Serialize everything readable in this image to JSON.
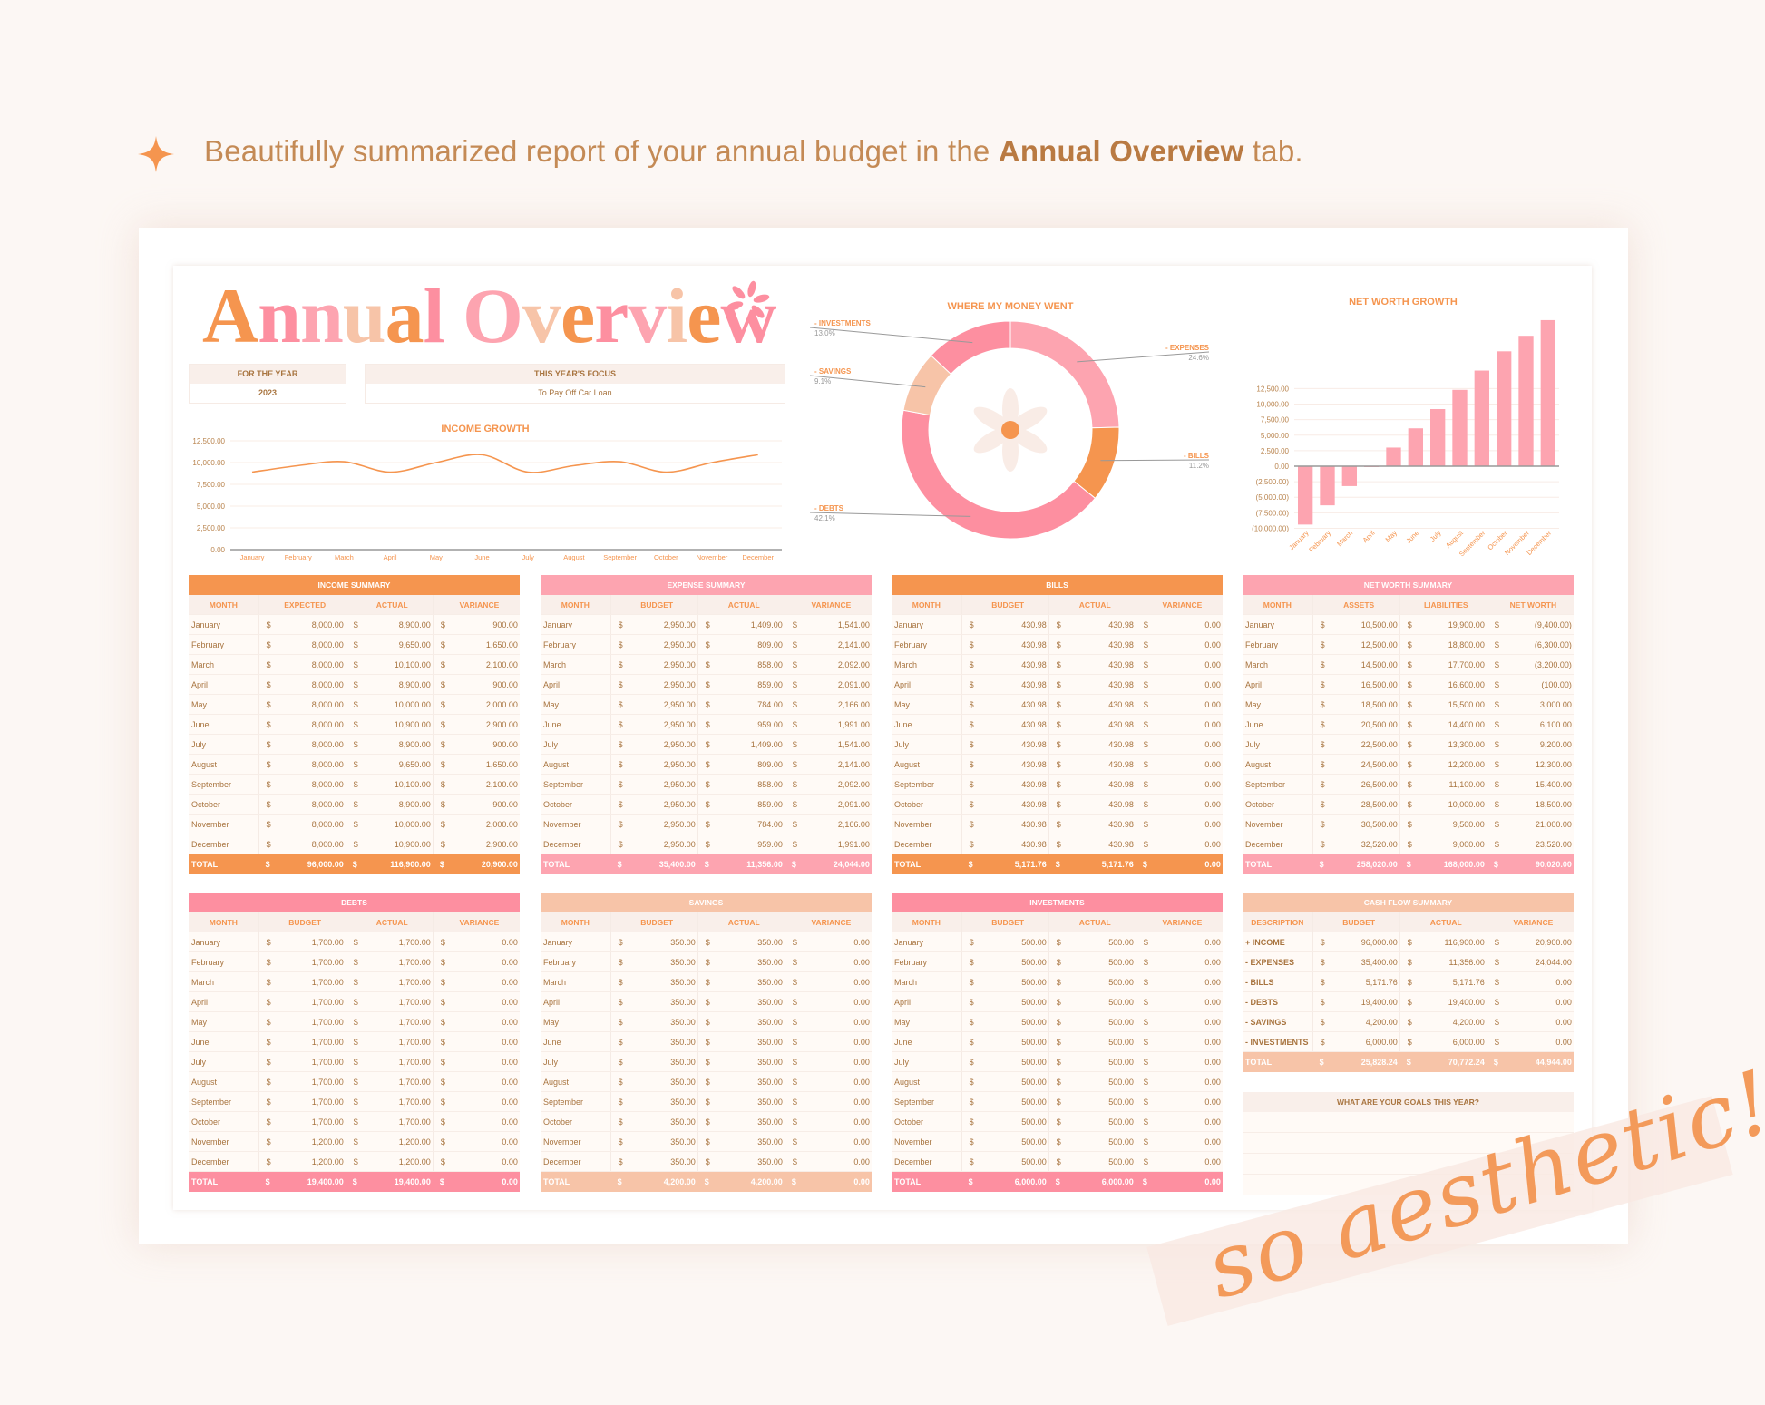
{
  "headline": {
    "prefix": "Beautifully summarized report of your annual budget in the ",
    "emphasis": "Annual Overview",
    "suffix": " tab."
  },
  "title": "Annual Overview",
  "title_palette": [
    "#f5954f",
    "#fd8fa0",
    "#fda4b0",
    "#f7c4a8"
  ],
  "for_the_year": {
    "label": "FOR THE YEAR",
    "value": "2023"
  },
  "focus": {
    "label": "THIS YEAR'S FOCUS",
    "value": "To Pay Off Car Loan"
  },
  "currency_symbol": "$",
  "colors": {
    "orange": "#f5954f",
    "pink": "#fd8fa0",
    "light_pink": "#fda4b0",
    "peach": "#f7c4a8",
    "text": "#a8743f"
  },
  "chart_data": [
    {
      "type": "line",
      "title": "INCOME GROWTH",
      "categories": [
        "January",
        "February",
        "March",
        "April",
        "May",
        "June",
        "July",
        "August",
        "September",
        "October",
        "November",
        "December"
      ],
      "values": [
        8900,
        9650,
        10100,
        8900,
        10000,
        10900,
        8900,
        9650,
        10100,
        8900,
        10000,
        10900
      ],
      "ylim": [
        0,
        12500
      ],
      "yticks": [
        "0.00",
        "2,500.00",
        "5,000.00",
        "7,500.00",
        "10,000.00",
        "12,500.00"
      ],
      "grid": true,
      "color": "#f5954f"
    },
    {
      "type": "pie",
      "title": "WHERE MY MONEY WENT",
      "donut": true,
      "slices": [
        {
          "label": "- EXPENSES",
          "pct_label": "24.6%",
          "value": 24.6,
          "color": "#fda4b0"
        },
        {
          "label": "- BILLS",
          "pct_label": "11.2%",
          "value": 11.2,
          "color": "#f5954f"
        },
        {
          "label": "- DEBTS",
          "pct_label": "42.1%",
          "value": 42.1,
          "color": "#fd8fa0"
        },
        {
          "label": "- SAVINGS",
          "pct_label": "9.1%",
          "value": 9.1,
          "color": "#f7c4a8"
        },
        {
          "label": "- INVESTMENTS",
          "pct_label": "13.0%",
          "value": 13.0,
          "color": "#fd8fa0"
        }
      ]
    },
    {
      "type": "bar",
      "title": "NET WORTH GROWTH",
      "categories": [
        "January",
        "February",
        "March",
        "April",
        "May",
        "June",
        "July",
        "August",
        "September",
        "October",
        "November",
        "December"
      ],
      "values": [
        -9400,
        -6300,
        -3200,
        -100,
        3000,
        6100,
        9200,
        12300,
        15400,
        18500,
        21000,
        23520
      ],
      "yticks": [
        "(10,000.00)",
        "(7,500.00)",
        "(5,000.00)",
        "(2,500.00)",
        "0.00",
        "2,500.00",
        "5,000.00",
        "7,500.00",
        "10,000.00",
        "12,500.00"
      ],
      "ytick_values": [
        -10000,
        -7500,
        -5000,
        -2500,
        0,
        2500,
        5000,
        7500,
        10000,
        12500
      ],
      "grid": true,
      "color": "#fda4b0"
    }
  ],
  "tables": [
    {
      "title": "INCOME SUMMARY",
      "accent": "#f5954f",
      "headers": [
        "MONTH",
        "EXPECTED",
        "ACTUAL",
        "VARIANCE"
      ],
      "rows": [
        [
          "January",
          "8,000.00",
          "8,900.00",
          "900.00"
        ],
        [
          "February",
          "8,000.00",
          "9,650.00",
          "1,650.00"
        ],
        [
          "March",
          "8,000.00",
          "10,100.00",
          "2,100.00"
        ],
        [
          "April",
          "8,000.00",
          "8,900.00",
          "900.00"
        ],
        [
          "May",
          "8,000.00",
          "10,000.00",
          "2,000.00"
        ],
        [
          "June",
          "8,000.00",
          "10,900.00",
          "2,900.00"
        ],
        [
          "July",
          "8,000.00",
          "8,900.00",
          "900.00"
        ],
        [
          "August",
          "8,000.00",
          "9,650.00",
          "1,650.00"
        ],
        [
          "September",
          "8,000.00",
          "10,100.00",
          "2,100.00"
        ],
        [
          "October",
          "8,000.00",
          "8,900.00",
          "900.00"
        ],
        [
          "November",
          "8,000.00",
          "10,000.00",
          "2,000.00"
        ],
        [
          "December",
          "8,000.00",
          "10,900.00",
          "2,900.00"
        ]
      ],
      "total": [
        "TOTAL",
        "96,000.00",
        "116,900.00",
        "20,900.00"
      ]
    },
    {
      "title": "EXPENSE SUMMARY",
      "accent": "#fda4b0",
      "headers": [
        "MONTH",
        "BUDGET",
        "ACTUAL",
        "VARIANCE"
      ],
      "rows": [
        [
          "January",
          "2,950.00",
          "1,409.00",
          "1,541.00"
        ],
        [
          "February",
          "2,950.00",
          "809.00",
          "2,141.00"
        ],
        [
          "March",
          "2,950.00",
          "858.00",
          "2,092.00"
        ],
        [
          "April",
          "2,950.00",
          "859.00",
          "2,091.00"
        ],
        [
          "May",
          "2,950.00",
          "784.00",
          "2,166.00"
        ],
        [
          "June",
          "2,950.00",
          "959.00",
          "1,991.00"
        ],
        [
          "July",
          "2,950.00",
          "1,409.00",
          "1,541.00"
        ],
        [
          "August",
          "2,950.00",
          "809.00",
          "2,141.00"
        ],
        [
          "September",
          "2,950.00",
          "858.00",
          "2,092.00"
        ],
        [
          "October",
          "2,950.00",
          "859.00",
          "2,091.00"
        ],
        [
          "November",
          "2,950.00",
          "784.00",
          "2,166.00"
        ],
        [
          "December",
          "2,950.00",
          "959.00",
          "1,991.00"
        ]
      ],
      "total": [
        "TOTAL",
        "35,400.00",
        "11,356.00",
        "24,044.00"
      ]
    },
    {
      "title": "BILLS",
      "accent": "#f5954f",
      "headers": [
        "MONTH",
        "BUDGET",
        "ACTUAL",
        "VARIANCE"
      ],
      "rows": [
        [
          "January",
          "430.98",
          "430.98",
          "0.00"
        ],
        [
          "February",
          "430.98",
          "430.98",
          "0.00"
        ],
        [
          "March",
          "430.98",
          "430.98",
          "0.00"
        ],
        [
          "April",
          "430.98",
          "430.98",
          "0.00"
        ],
        [
          "May",
          "430.98",
          "430.98",
          "0.00"
        ],
        [
          "June",
          "430.98",
          "430.98",
          "0.00"
        ],
        [
          "July",
          "430.98",
          "430.98",
          "0.00"
        ],
        [
          "August",
          "430.98",
          "430.98",
          "0.00"
        ],
        [
          "September",
          "430.98",
          "430.98",
          "0.00"
        ],
        [
          "October",
          "430.98",
          "430.98",
          "0.00"
        ],
        [
          "November",
          "430.98",
          "430.98",
          "0.00"
        ],
        [
          "December",
          "430.98",
          "430.98",
          "0.00"
        ]
      ],
      "total": [
        "TOTAL",
        "5,171.76",
        "5,171.76",
        "0.00"
      ]
    },
    {
      "title": "NET WORTH SUMMARY",
      "accent": "#fda4b0",
      "headers": [
        "MONTH",
        "ASSETS",
        "LIABILITIES",
        "NET WORTH"
      ],
      "rows": [
        [
          "January",
          "10,500.00",
          "19,900.00",
          "(9,400.00)"
        ],
        [
          "February",
          "12,500.00",
          "18,800.00",
          "(6,300.00)"
        ],
        [
          "March",
          "14,500.00",
          "17,700.00",
          "(3,200.00)"
        ],
        [
          "April",
          "16,500.00",
          "16,600.00",
          "(100.00)"
        ],
        [
          "May",
          "18,500.00",
          "15,500.00",
          "3,000.00"
        ],
        [
          "June",
          "20,500.00",
          "14,400.00",
          "6,100.00"
        ],
        [
          "July",
          "22,500.00",
          "13,300.00",
          "9,200.00"
        ],
        [
          "August",
          "24,500.00",
          "12,200.00",
          "12,300.00"
        ],
        [
          "September",
          "26,500.00",
          "11,100.00",
          "15,400.00"
        ],
        [
          "October",
          "28,500.00",
          "10,000.00",
          "18,500.00"
        ],
        [
          "November",
          "30,500.00",
          "9,500.00",
          "21,000.00"
        ],
        [
          "December",
          "32,520.00",
          "9,000.00",
          "23,520.00"
        ]
      ],
      "total": [
        "TOTAL",
        "258,020.00",
        "168,000.00",
        "90,020.00"
      ]
    },
    {
      "title": "DEBTS",
      "accent": "#fd8fa0",
      "headers": [
        "MONTH",
        "BUDGET",
        "ACTUAL",
        "VARIANCE"
      ],
      "rows": [
        [
          "January",
          "1,700.00",
          "1,700.00",
          "0.00"
        ],
        [
          "February",
          "1,700.00",
          "1,700.00",
          "0.00"
        ],
        [
          "March",
          "1,700.00",
          "1,700.00",
          "0.00"
        ],
        [
          "April",
          "1,700.00",
          "1,700.00",
          "0.00"
        ],
        [
          "May",
          "1,700.00",
          "1,700.00",
          "0.00"
        ],
        [
          "June",
          "1,700.00",
          "1,700.00",
          "0.00"
        ],
        [
          "July",
          "1,700.00",
          "1,700.00",
          "0.00"
        ],
        [
          "August",
          "1,700.00",
          "1,700.00",
          "0.00"
        ],
        [
          "September",
          "1,700.00",
          "1,700.00",
          "0.00"
        ],
        [
          "October",
          "1,700.00",
          "1,700.00",
          "0.00"
        ],
        [
          "November",
          "1,200.00",
          "1,200.00",
          "0.00"
        ],
        [
          "December",
          "1,200.00",
          "1,200.00",
          "0.00"
        ]
      ],
      "total": [
        "TOTAL",
        "19,400.00",
        "19,400.00",
        "0.00"
      ]
    },
    {
      "title": "SAVINGS",
      "accent": "#f7c4a8",
      "headers": [
        "MONTH",
        "BUDGET",
        "ACTUAL",
        "VARIANCE"
      ],
      "rows": [
        [
          "January",
          "350.00",
          "350.00",
          "0.00"
        ],
        [
          "February",
          "350.00",
          "350.00",
          "0.00"
        ],
        [
          "March",
          "350.00",
          "350.00",
          "0.00"
        ],
        [
          "April",
          "350.00",
          "350.00",
          "0.00"
        ],
        [
          "May",
          "350.00",
          "350.00",
          "0.00"
        ],
        [
          "June",
          "350.00",
          "350.00",
          "0.00"
        ],
        [
          "July",
          "350.00",
          "350.00",
          "0.00"
        ],
        [
          "August",
          "350.00",
          "350.00",
          "0.00"
        ],
        [
          "September",
          "350.00",
          "350.00",
          "0.00"
        ],
        [
          "October",
          "350.00",
          "350.00",
          "0.00"
        ],
        [
          "November",
          "350.00",
          "350.00",
          "0.00"
        ],
        [
          "December",
          "350.00",
          "350.00",
          "0.00"
        ]
      ],
      "total": [
        "TOTAL",
        "4,200.00",
        "4,200.00",
        "0.00"
      ]
    },
    {
      "title": "INVESTMENTS",
      "accent": "#fd8fa0",
      "headers": [
        "MONTH",
        "BUDGET",
        "ACTUAL",
        "VARIANCE"
      ],
      "rows": [
        [
          "January",
          "500.00",
          "500.00",
          "0.00"
        ],
        [
          "February",
          "500.00",
          "500.00",
          "0.00"
        ],
        [
          "March",
          "500.00",
          "500.00",
          "0.00"
        ],
        [
          "April",
          "500.00",
          "500.00",
          "0.00"
        ],
        [
          "May",
          "500.00",
          "500.00",
          "0.00"
        ],
        [
          "June",
          "500.00",
          "500.00",
          "0.00"
        ],
        [
          "July",
          "500.00",
          "500.00",
          "0.00"
        ],
        [
          "August",
          "500.00",
          "500.00",
          "0.00"
        ],
        [
          "September",
          "500.00",
          "500.00",
          "0.00"
        ],
        [
          "October",
          "500.00",
          "500.00",
          "0.00"
        ],
        [
          "November",
          "500.00",
          "500.00",
          "0.00"
        ],
        [
          "December",
          "500.00",
          "500.00",
          "0.00"
        ]
      ],
      "total": [
        "TOTAL",
        "6,000.00",
        "6,000.00",
        "0.00"
      ]
    },
    {
      "title": "CASH FLOW SUMMARY",
      "accent": "#f7c4a8",
      "headers": [
        "DESCRIPTION",
        "BUDGET",
        "ACTUAL",
        "VARIANCE"
      ],
      "rows": [
        [
          "+ INCOME",
          "96,000.00",
          "116,900.00",
          "20,900.00"
        ],
        [
          "- EXPENSES",
          "35,400.00",
          "11,356.00",
          "24,044.00"
        ],
        [
          "- BILLS",
          "5,171.76",
          "5,171.76",
          "0.00"
        ],
        [
          "- DEBTS",
          "19,400.00",
          "19,400.00",
          "0.00"
        ],
        [
          "- SAVINGS",
          "4,200.00",
          "4,200.00",
          "0.00"
        ],
        [
          "- INVESTMENTS",
          "6,000.00",
          "6,000.00",
          "0.00"
        ]
      ],
      "total": [
        "TOTAL",
        "25,828.24",
        "70,772.24",
        "44,944.00"
      ]
    }
  ],
  "goals": {
    "label": "WHAT ARE YOUR GOALS THIS YEAR?"
  },
  "tagline": "so aesthetic!"
}
